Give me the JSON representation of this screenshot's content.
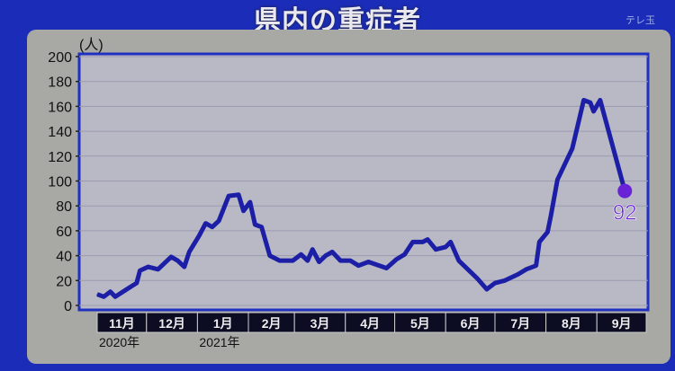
{
  "header": {
    "title": "県内の重症者",
    "watermark": "テレ玉"
  },
  "chart_data": {
    "type": "line",
    "title": "県内の重症者",
    "ylabel": "(人)",
    "ylim": [
      0,
      200
    ],
    "yticks": [
      0,
      20,
      40,
      60,
      80,
      100,
      120,
      140,
      160,
      180,
      200
    ],
    "xlim": [
      "2020-11-01",
      "2021-10-01"
    ],
    "month_labels": [
      "11月",
      "12月",
      "1月",
      "2月",
      "3月",
      "4月",
      "5月",
      "6月",
      "7月",
      "8月",
      "9月"
    ],
    "year_labels": [
      {
        "month_index": 0,
        "text": "2020年"
      },
      {
        "month_index": 2,
        "text": "2021年"
      }
    ],
    "grid": true,
    "line_color": "#1c1fa6",
    "end_marker_color": "#6a22d6",
    "end_label": "92",
    "series": [
      {
        "points": [
          [
            "2020-11-01",
            9
          ],
          [
            "2020-11-05",
            7
          ],
          [
            "2020-11-09",
            11
          ],
          [
            "2020-11-12",
            7
          ],
          [
            "2020-11-19",
            13
          ],
          [
            "2020-11-25",
            18
          ],
          [
            "2020-11-27",
            28
          ],
          [
            "2020-12-02",
            31
          ],
          [
            "2020-12-08",
            29
          ],
          [
            "2020-12-16",
            39
          ],
          [
            "2020-12-20",
            36
          ],
          [
            "2020-12-24",
            31
          ],
          [
            "2020-12-27",
            43
          ],
          [
            "2021-01-02",
            56
          ],
          [
            "2021-01-06",
            66
          ],
          [
            "2021-01-10",
            63
          ],
          [
            "2021-01-14",
            68
          ],
          [
            "2021-01-20",
            88
          ],
          [
            "2021-01-26",
            89
          ],
          [
            "2021-01-29",
            76
          ],
          [
            "2021-02-02",
            83
          ],
          [
            "2021-02-05",
            65
          ],
          [
            "2021-02-09",
            63
          ],
          [
            "2021-02-14",
            40
          ],
          [
            "2021-02-20",
            36
          ],
          [
            "2021-02-28",
            36
          ],
          [
            "2021-03-05",
            41
          ],
          [
            "2021-03-09",
            36
          ],
          [
            "2021-03-12",
            45
          ],
          [
            "2021-03-16",
            35
          ],
          [
            "2021-03-20",
            40
          ],
          [
            "2021-03-24",
            43
          ],
          [
            "2021-03-29",
            36
          ],
          [
            "2021-04-04",
            36
          ],
          [
            "2021-04-09",
            32
          ],
          [
            "2021-04-15",
            35
          ],
          [
            "2021-04-26",
            30
          ],
          [
            "2021-05-02",
            37
          ],
          [
            "2021-05-07",
            41
          ],
          [
            "2021-05-12",
            51
          ],
          [
            "2021-05-18",
            51
          ],
          [
            "2021-05-21",
            53
          ],
          [
            "2021-05-26",
            45
          ],
          [
            "2021-06-01",
            47
          ],
          [
            "2021-06-04",
            51
          ],
          [
            "2021-06-09",
            36
          ],
          [
            "2021-06-20",
            22
          ],
          [
            "2021-06-26",
            13
          ],
          [
            "2021-07-01",
            18
          ],
          [
            "2021-07-07",
            20
          ],
          [
            "2021-07-15",
            25
          ],
          [
            "2021-07-20",
            29
          ],
          [
            "2021-07-26",
            32
          ],
          [
            "2021-07-28",
            51
          ],
          [
            "2021-08-02",
            59
          ],
          [
            "2021-08-04",
            72
          ],
          [
            "2021-08-08",
            101
          ],
          [
            "2021-08-17",
            126
          ],
          [
            "2021-08-24",
            165
          ],
          [
            "2021-08-28",
            163
          ],
          [
            "2021-08-30",
            156
          ],
          [
            "2021-09-03",
            165
          ],
          [
            "2021-09-18",
            92
          ]
        ]
      }
    ]
  }
}
